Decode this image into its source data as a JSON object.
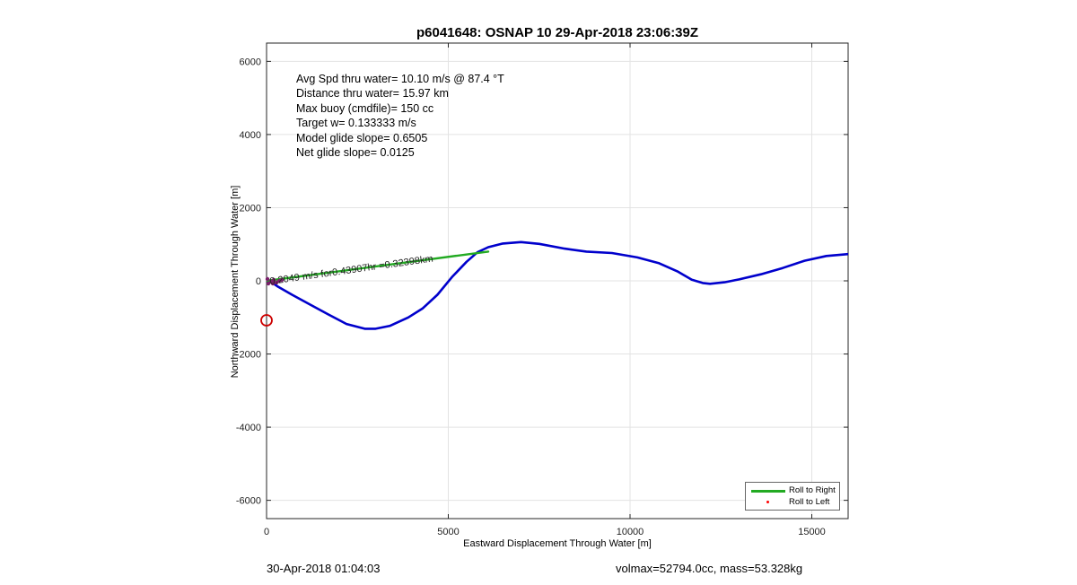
{
  "title": "p6041648: OSNAP 10 29-Apr-2018 23:06:39Z",
  "footer": {
    "left": "30-Apr-2018 01:04:03",
    "right": "volmax=52794.0cc, mass=53.328kg"
  },
  "annotations": [
    "Avg Spd thru water= 10.10 m/s @  87.4 °T",
    "Distance thru water= 15.97 km",
    "Max buoy (cmdfile)= 150 cc",
    "Target w= 0.133333 m/s",
    "Model glide slope= 0.6505",
    "Net glide slope= 0.0125"
  ],
  "overlap_label": "0.2049 m/s for0.43907hr =0.32398km",
  "legend": {
    "roll_right": "Roll to Right",
    "roll_left": "Roll to Left"
  },
  "colors": {
    "track": "#0000cc",
    "roll_right": "#22aa22",
    "roll_left": "#ff0000",
    "marker": "#cc0000"
  },
  "chart_data": {
    "type": "line",
    "xlabel": "Eastward Displacement Through Water [m]",
    "ylabel": "Northward Displacement Through Water [m]",
    "xlim": [
      0,
      16000
    ],
    "ylim": [
      -6500,
      6500
    ],
    "xticks": [
      0,
      5000,
      10000,
      15000
    ],
    "yticks": [
      -6000,
      -4000,
      -2000,
      0,
      2000,
      4000,
      6000
    ],
    "grid": true,
    "legend_position": "bottom-right",
    "series": [
      {
        "name": "track",
        "x": [
          0,
          150,
          300,
          700,
          1200,
          1700,
          2200,
          2700,
          3000,
          3400,
          3900,
          4300,
          4700,
          5100,
          5500,
          5800,
          6100,
          6500,
          7000,
          7500,
          8200,
          8800,
          9500,
          10200,
          10800,
          11300,
          11700,
          12000,
          12200,
          12600,
          13000,
          13600,
          14200,
          14800,
          15400,
          16000
        ],
        "y": [
          0,
          -50,
          -150,
          -380,
          -650,
          -920,
          -1180,
          -1310,
          -1310,
          -1230,
          -1000,
          -750,
          -380,
          100,
          520,
          780,
          920,
          1020,
          1060,
          1010,
          880,
          800,
          760,
          640,
          480,
          260,
          30,
          -60,
          -80,
          -40,
          40,
          180,
          350,
          550,
          680,
          730
        ]
      },
      {
        "name": "Roll to Right",
        "x": [
          0,
          6100
        ],
        "y": [
          0,
          800
        ]
      }
    ],
    "markers": [
      {
        "x": 0,
        "y": -1080,
        "shape": "circle"
      },
      {
        "x": 50,
        "y": 0,
        "shape": "dots"
      }
    ]
  }
}
